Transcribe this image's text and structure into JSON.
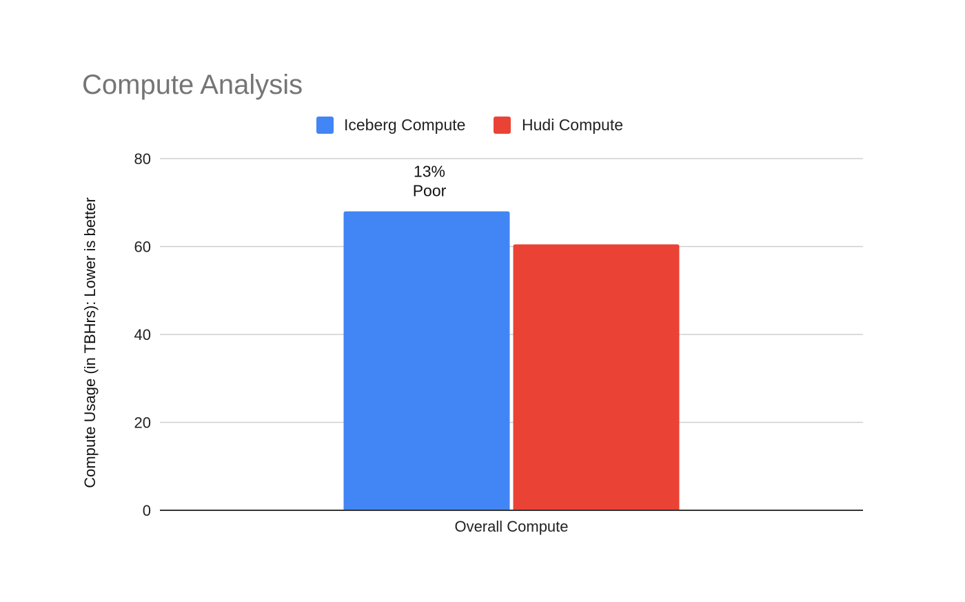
{
  "chart_data": {
    "type": "bar",
    "title": "Compute Analysis",
    "xlabel": "",
    "ylabel": "Compute Usage (in TBHrs): Lower is better",
    "categories": [
      "Overall Compute"
    ],
    "series": [
      {
        "name": "Iceberg Compute",
        "values": [
          68
        ],
        "color": "#4285F4"
      },
      {
        "name": "Hudi Compute",
        "values": [
          60.5
        ],
        "color": "#EA4335"
      }
    ],
    "ylim": [
      0,
      80
    ],
    "yticks": [
      0,
      20,
      40,
      60,
      80
    ],
    "grid": true,
    "legend_position": "top",
    "annotation": {
      "series_index": 0,
      "category_index": 0,
      "lines": [
        "13%",
        "Poor"
      ]
    }
  }
}
